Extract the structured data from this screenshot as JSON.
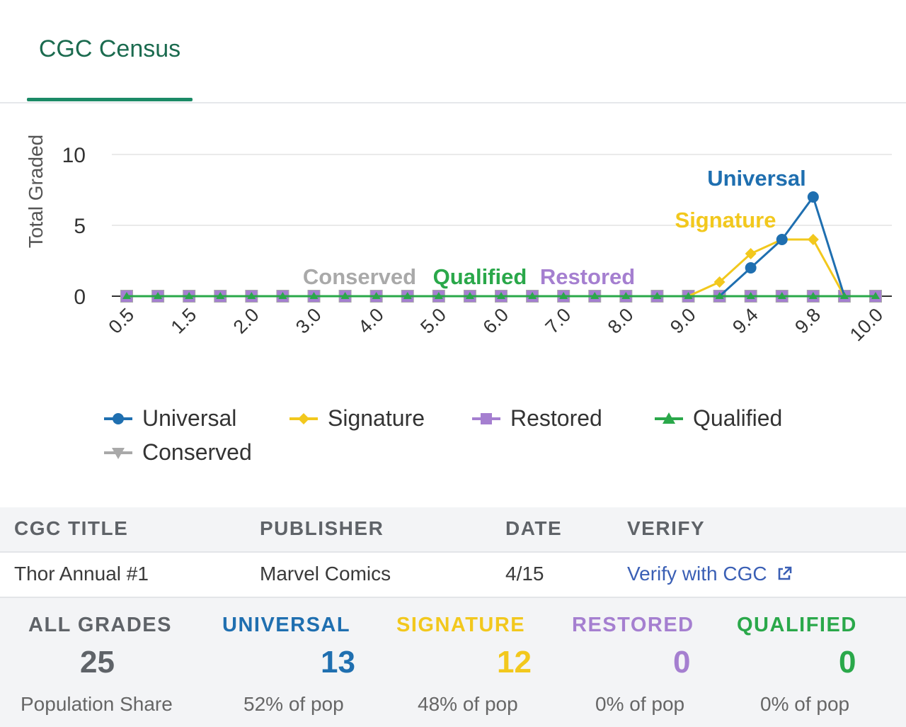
{
  "tabs": [
    {
      "label": "CGC Census",
      "active": true
    }
  ],
  "chart_data": {
    "type": "line",
    "ylabel": "Total Graded",
    "ylim": [
      0,
      10
    ],
    "yticks": [
      0,
      5,
      10
    ],
    "x": [
      0.5,
      1.0,
      1.5,
      1.8,
      2.0,
      2.5,
      3.0,
      3.5,
      4.0,
      4.5,
      5.0,
      5.5,
      6.0,
      6.5,
      7.0,
      7.5,
      8.0,
      8.5,
      9.0,
      9.2,
      9.4,
      9.6,
      9.8,
      9.9,
      10.0
    ],
    "xtick_labels": [
      "0.5",
      "1.5",
      "2.0",
      "3.0",
      "4.0",
      "5.0",
      "6.0",
      "7.0",
      "8.0",
      "9.0",
      "9.4",
      "9.8",
      "10.0"
    ],
    "series": [
      {
        "name": "Universal",
        "color": "#1f6fb0",
        "marker": "circle",
        "values": [
          0,
          0,
          0,
          0,
          0,
          0,
          0,
          0,
          0,
          0,
          0,
          0,
          0,
          0,
          0,
          0,
          0,
          0,
          0,
          0,
          2,
          4,
          7,
          0,
          0
        ]
      },
      {
        "name": "Signature",
        "color": "#f2c81d",
        "marker": "diamond",
        "values": [
          0,
          0,
          0,
          0,
          0,
          0,
          0,
          0,
          0,
          0,
          0,
          0,
          0,
          0,
          0,
          0,
          0,
          0,
          0,
          1,
          3,
          4,
          4,
          0,
          0
        ]
      },
      {
        "name": "Restored",
        "color": "#a57fd0",
        "marker": "square",
        "values": [
          0,
          0,
          0,
          0,
          0,
          0,
          0,
          0,
          0,
          0,
          0,
          0,
          0,
          0,
          0,
          0,
          0,
          0,
          0,
          0,
          0,
          0,
          0,
          0,
          0
        ]
      },
      {
        "name": "Qualified",
        "color": "#2aa84a",
        "marker": "triangle",
        "values": [
          0,
          0,
          0,
          0,
          0,
          0,
          0,
          0,
          0,
          0,
          0,
          0,
          0,
          0,
          0,
          0,
          0,
          0,
          0,
          0,
          0,
          0,
          0,
          0,
          0
        ]
      },
      {
        "name": "Conserved",
        "color": "#a9a9a9",
        "marker": "triangle-down",
        "values": [
          0,
          0,
          0,
          0,
          0,
          0,
          0,
          0,
          0,
          0,
          0,
          0,
          0,
          0,
          0,
          0,
          0,
          0,
          0,
          0,
          0,
          0,
          0,
          0,
          0
        ]
      }
    ],
    "annotations": [
      {
        "text": "Universal",
        "color": "#1f6fb0"
      },
      {
        "text": "Signature",
        "color": "#f2c81d"
      },
      {
        "text": "Conserved",
        "color": "#a9a9a9"
      },
      {
        "text": "Qualified",
        "color": "#2aa84a"
      },
      {
        "text": "Restored",
        "color": "#a57fd0"
      }
    ],
    "legend": {
      "position": "bottom"
    }
  },
  "legend": [
    "Universal",
    "Signature",
    "Restored",
    "Qualified",
    "Conserved"
  ],
  "table": {
    "headers": {
      "title": "CGC TITLE",
      "publisher": "PUBLISHER",
      "date": "DATE",
      "verify": "VERIFY"
    },
    "row": {
      "title": "Thor Annual #1",
      "publisher": "Marvel Comics",
      "date": "4/15",
      "verify": "Verify with CGC"
    }
  },
  "stats": [
    {
      "label": "ALL GRADES",
      "value": "25",
      "sub": "Population Share",
      "color": "#5f6368"
    },
    {
      "label": "UNIVERSAL",
      "value": "13",
      "sub": "52% of pop",
      "color": "#1f6fb0"
    },
    {
      "label": "SIGNATURE",
      "value": "12",
      "sub": "48% of pop",
      "color": "#f2c81d"
    },
    {
      "label": "RESTORED",
      "value": "0",
      "sub": "0% of pop",
      "color": "#a57fd0"
    },
    {
      "label": "QUALIFIED",
      "value": "0",
      "sub": "0% of pop",
      "color": "#2aa84a"
    }
  ],
  "icons": {
    "verify": "external-link-icon"
  }
}
